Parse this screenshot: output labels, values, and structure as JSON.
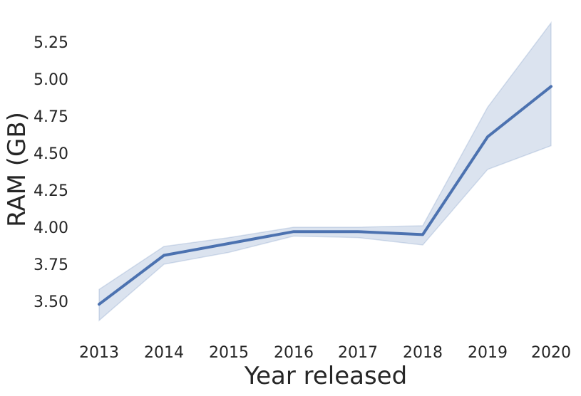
{
  "chart_data": {
    "type": "line",
    "title": "",
    "xlabel": "Year released",
    "ylabel": "RAM (GB)",
    "x": [
      2013,
      2014,
      2015,
      2016,
      2017,
      2018,
      2019,
      2020
    ],
    "x_tick_labels": [
      "2013",
      "2014",
      "2015",
      "2016",
      "2017",
      "2018",
      "2019",
      "2020"
    ],
    "y_ticks": [
      3.5,
      3.75,
      4.0,
      4.25,
      4.5,
      4.75,
      5.0,
      5.25
    ],
    "y_tick_labels": [
      "3.50",
      "3.75",
      "4.00",
      "4.25",
      "4.50",
      "4.75",
      "5.00",
      "5.25"
    ],
    "ylim": [
      3.29,
      5.43
    ],
    "xlim": [
      2012.75,
      2020.3
    ],
    "grid": false,
    "series": [
      {
        "values": [
          3.48,
          3.81,
          3.89,
          3.97,
          3.97,
          3.95,
          4.61,
          4.95
        ],
        "ci_lower": [
          3.37,
          3.75,
          3.83,
          3.94,
          3.93,
          3.88,
          4.39,
          4.55
        ],
        "ci_upper": [
          3.58,
          3.87,
          3.93,
          4.0,
          4.0,
          4.01,
          4.81,
          5.38
        ],
        "color": "#4c72b0",
        "band_color": "#4c72b0"
      }
    ]
  }
}
